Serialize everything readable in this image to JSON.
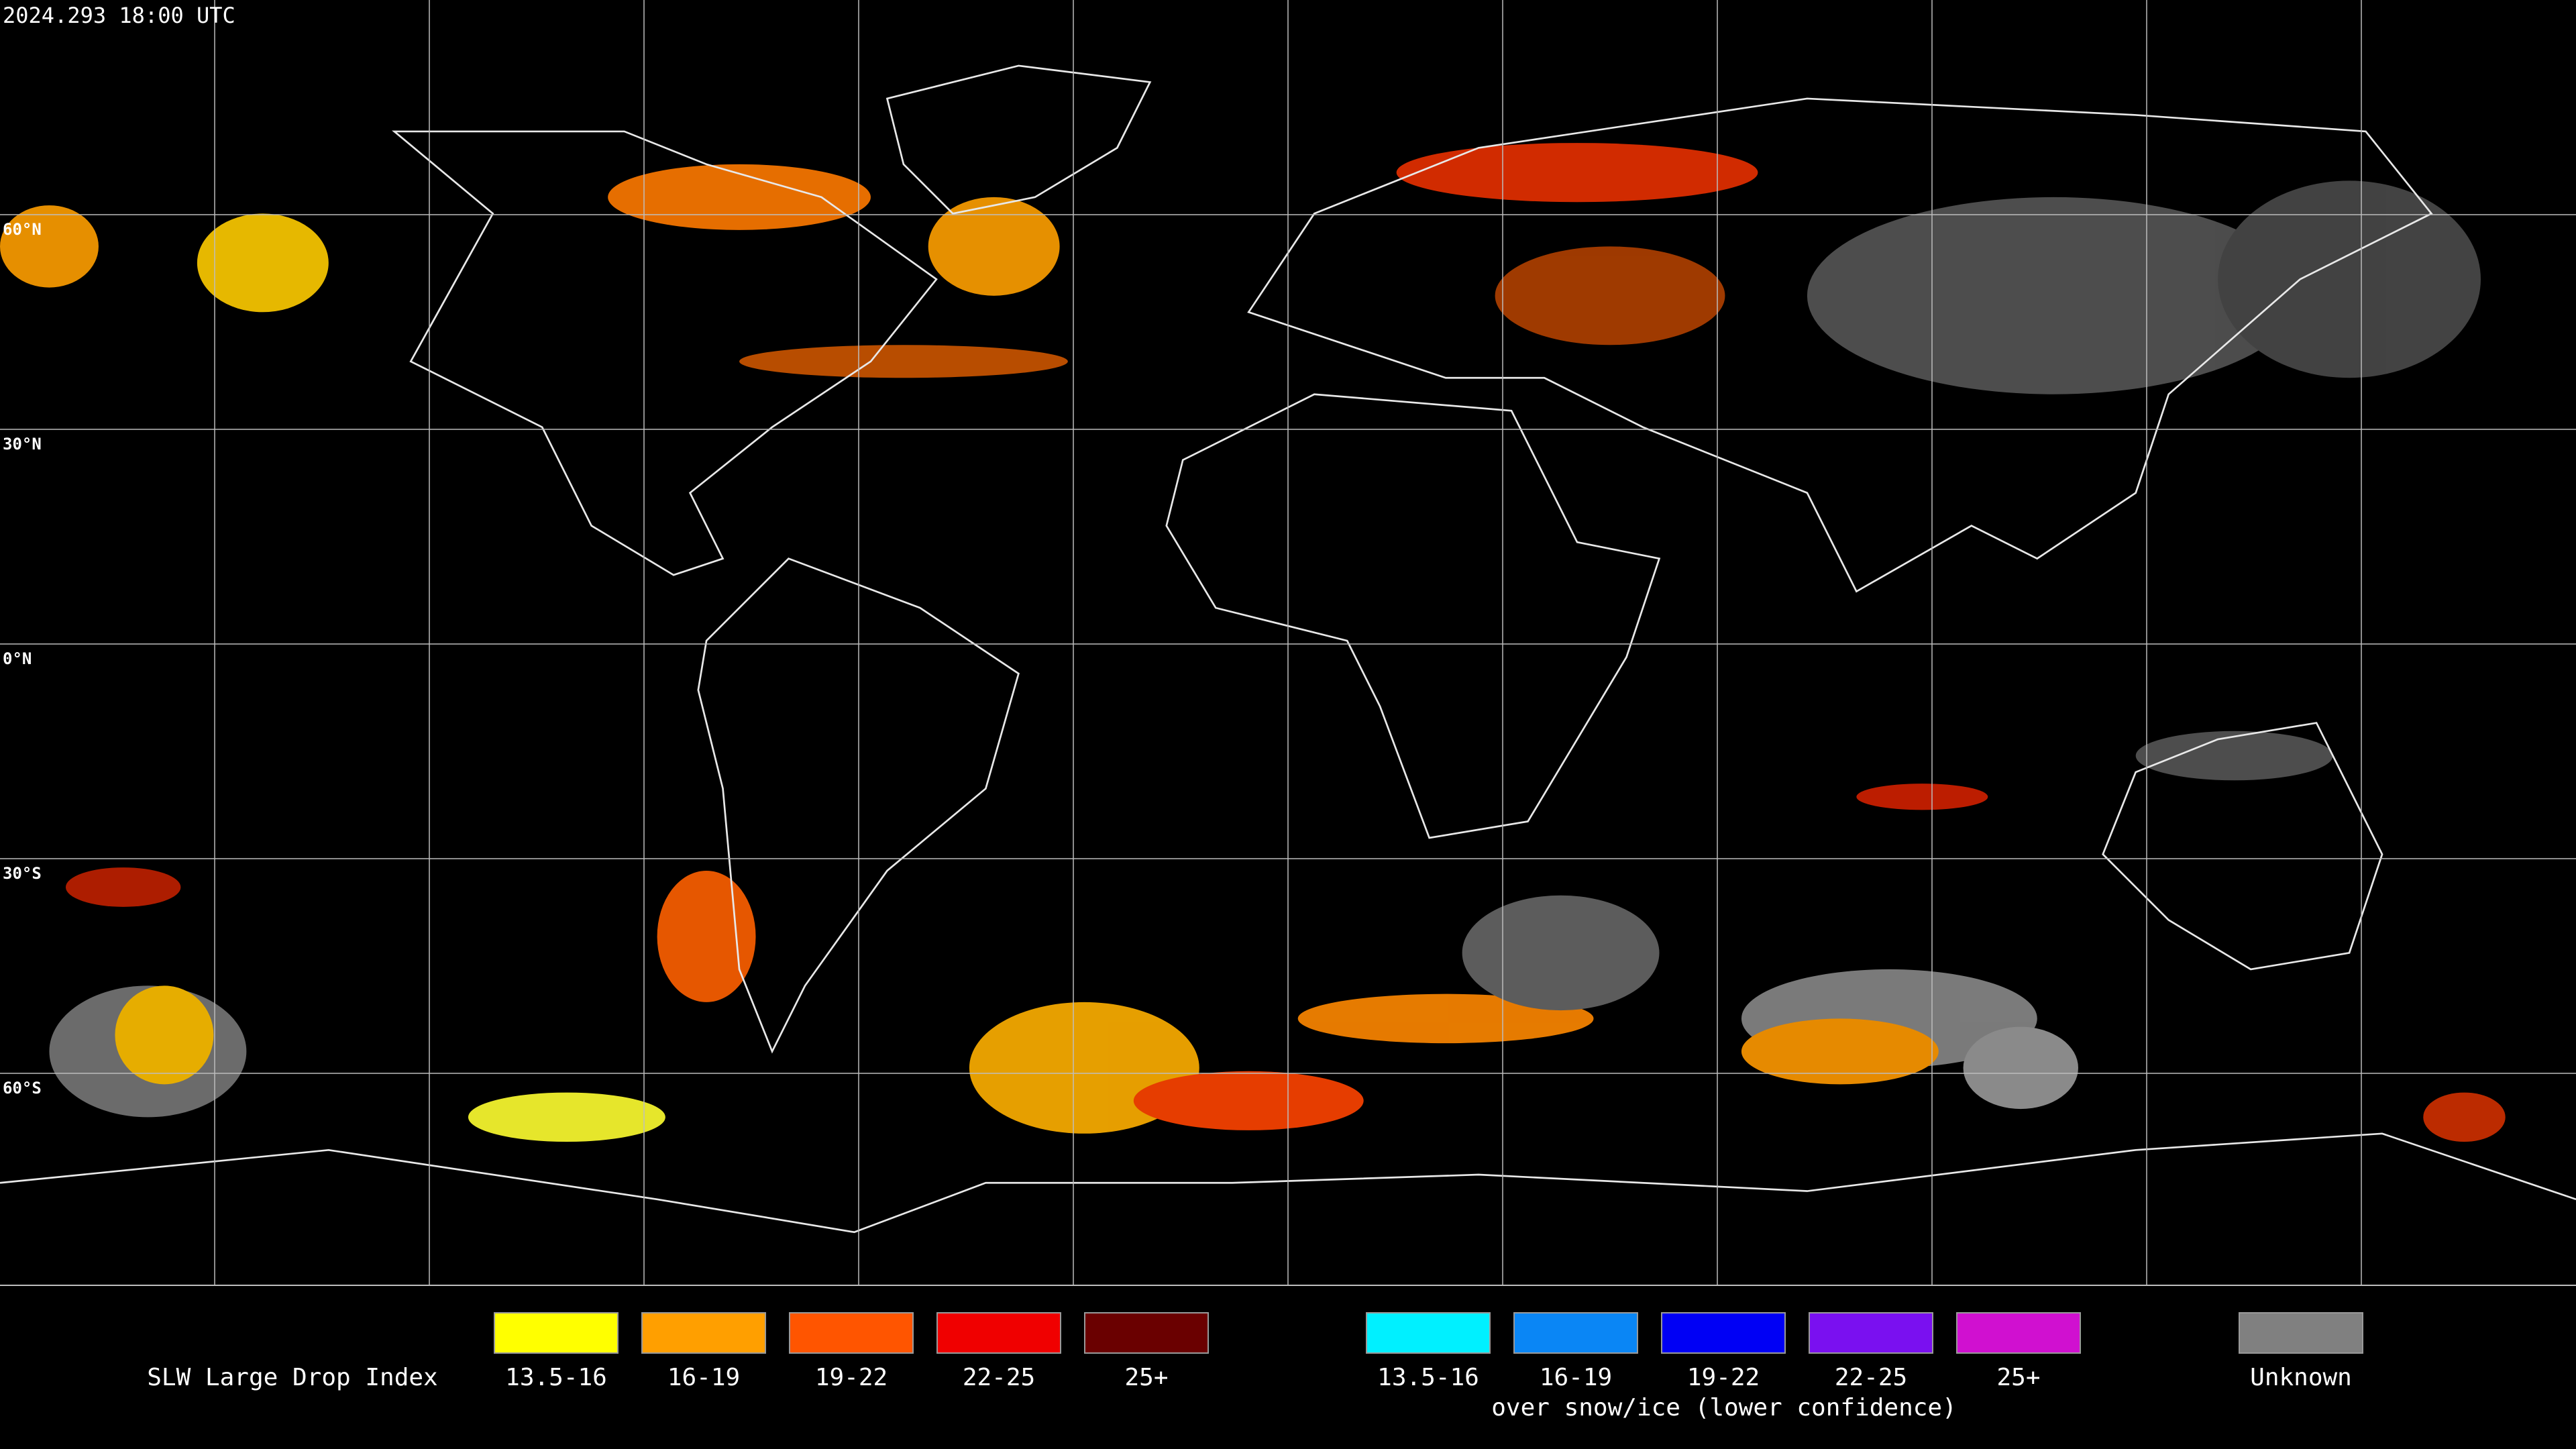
{
  "header": {
    "timestamp": "2024.293 18:00 UTC"
  },
  "map": {
    "latitude_labels": [
      "60°N",
      "30°N",
      "0°N",
      "30°S",
      "60°S"
    ]
  },
  "legend": {
    "title": "SLW Large Drop Index",
    "main_items": [
      {
        "label": "13.5-16",
        "color": "#ffff00"
      },
      {
        "label": "16-19",
        "color": "#ff9f00"
      },
      {
        "label": "19-22",
        "color": "#ff5500"
      },
      {
        "label": "22-25",
        "color": "#f00000"
      },
      {
        "label": "25+",
        "color": "#6a0000"
      }
    ],
    "snow_items": [
      {
        "label": "13.5-16",
        "color": "#00f0ff"
      },
      {
        "label": "16-19",
        "color": "#0a86f5"
      },
      {
        "label": "19-22",
        "color": "#0000f5"
      },
      {
        "label": "22-25",
        "color": "#7a10f0"
      },
      {
        "label": "25+",
        "color": "#d010d0"
      }
    ],
    "snow_caption": "over snow/ice (lower confidence)",
    "unknown": {
      "label": "Unknown",
      "color": "#808080"
    }
  }
}
